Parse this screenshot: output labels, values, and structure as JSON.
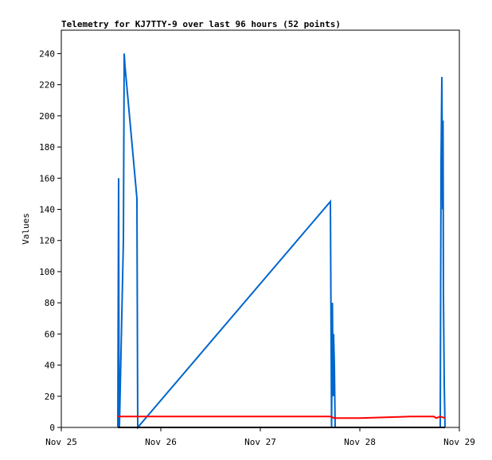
{
  "chart_data": {
    "type": "line",
    "title": "Telemetry for KJ7TTY-9 over last 96 hours (52 points)",
    "ylabel": "Values",
    "xlim": [
      0,
      4
    ],
    "xticks": [
      {
        "value": 0,
        "label": "Nov 25"
      },
      {
        "value": 1,
        "label": "Nov 26"
      },
      {
        "value": 2,
        "label": "Nov 27"
      },
      {
        "value": 3,
        "label": "Nov 28"
      },
      {
        "value": 4,
        "label": "Nov 29"
      }
    ],
    "ylim": [
      0,
      255
    ],
    "yticks": [
      0,
      20,
      40,
      60,
      80,
      100,
      120,
      140,
      160,
      180,
      200,
      220,
      240
    ],
    "grid": false,
    "series": [
      {
        "color": "#0066cc",
        "x": [
          0.568,
          0.576,
          0.58,
          0.584,
          0.624,
          0.632,
          0.64,
          0.76,
          0.768,
          2.704,
          2.716,
          2.724,
          2.732,
          2.736,
          2.744,
          2.752,
          3.808,
          3.816,
          3.824,
          3.832,
          3.836,
          3.84,
          3.848,
          3.856
        ],
        "values": [
          0,
          160,
          25,
          0,
          120,
          240,
          232,
          147,
          0,
          145,
          0,
          80,
          20,
          60,
          40,
          0,
          0,
          170,
          225,
          140,
          197,
          85,
          28,
          0
        ]
      },
      {
        "color": "#ff0000",
        "x": [
          0.568,
          2.704,
          2.744,
          3.0,
          3.504,
          3.744,
          3.768,
          3.808,
          3.856
        ],
        "values": [
          7,
          7,
          6,
          6,
          7,
          7,
          6,
          7,
          6
        ]
      },
      {
        "color": "#000000",
        "x": [
          0.568,
          3.856
        ],
        "values": [
          0,
          0
        ]
      }
    ]
  }
}
